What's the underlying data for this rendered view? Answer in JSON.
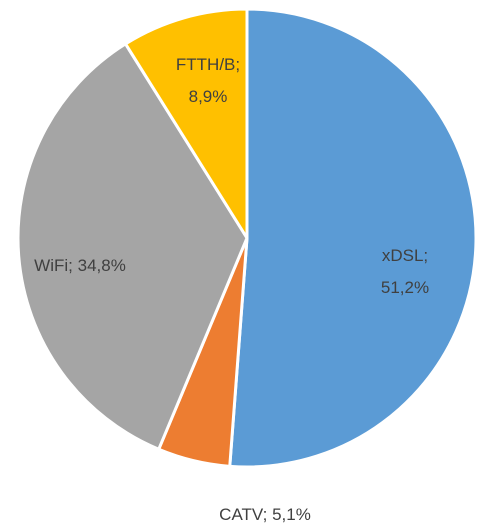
{
  "chart_data": {
    "type": "pie",
    "values": [
      51.2,
      5.1,
      34.8,
      8.9
    ],
    "value_labels": [
      "xDSL; 51,2%",
      "CATV; 5,1%",
      "WiFi; 34,8%",
      "FTTH/B;\n8,9%"
    ],
    "colors": [
      "#5b9bd5",
      "#ed7d31",
      "#a5a5a5",
      "#ffc000"
    ]
  }
}
